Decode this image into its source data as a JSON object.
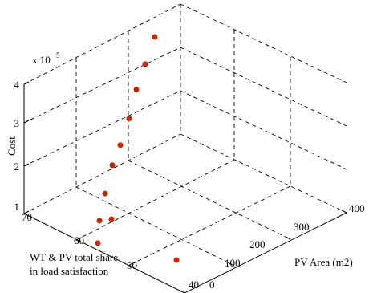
{
  "chart_data": {
    "type": "scatter3d",
    "title": "",
    "xlabel": "PV Area (m2)",
    "ylabel_lines": [
      "WT & PV total share",
      "in load satisfaction"
    ],
    "zlabel": "Cost",
    "zexponent_base": "x 10",
    "zexponent_power": "5",
    "xlim": [
      0,
      400
    ],
    "ylim": [
      40,
      70
    ],
    "zlim": [
      1,
      4
    ],
    "xticks": [
      "0",
      "100",
      "200",
      "300",
      "400"
    ],
    "yticks": [
      "40",
      "50",
      "60",
      "70"
    ],
    "zticks": [
      "1",
      "2",
      "3",
      "4"
    ],
    "grid": true,
    "marker_color": "#cc2200",
    "points_zref": [
      1.3,
      1.6,
      1.98,
      2.44,
      2.92,
      3.26,
      3.71,
      4.2,
      4.63,
      5.09
    ]
  }
}
